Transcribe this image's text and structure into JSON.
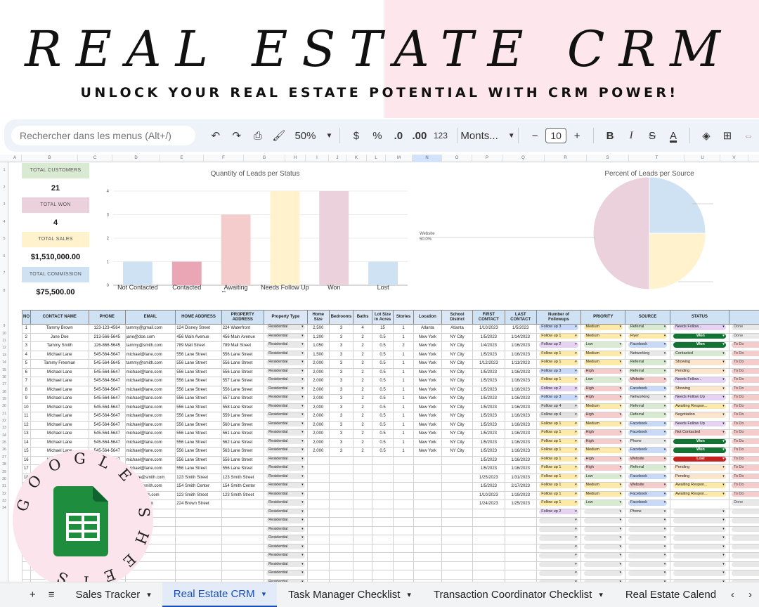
{
  "hero": {
    "title": "REAL ESTATE CRM",
    "subtitle": "UNLOCK YOUR REAL ESTATE POTENTIAL WITH CRM POWER!"
  },
  "toolbar": {
    "search_placeholder": "Rechercher dans les menus (Alt+/)",
    "zoom": "50%",
    "currency": "$",
    "percent": "%",
    "decrease_decimals": ".0",
    "increase_decimals": ".00",
    "number_format": "123",
    "font": "Monts...",
    "font_size": "10"
  },
  "columns": [
    "A",
    "B",
    "C",
    "D",
    "E",
    "F",
    "G",
    "H",
    "I",
    "J",
    "K",
    "L",
    "M",
    "N",
    "O",
    "P",
    "Q",
    "R",
    "S",
    "T",
    "U",
    "V"
  ],
  "kpis": [
    {
      "label": "TOTAL CUSTOMERS",
      "value": "21",
      "color": "#d9ead3"
    },
    {
      "label": "TOTAL WON",
      "value": "4",
      "color": "#ead1dc"
    },
    {
      "label": "TOTAL SALES",
      "value": "$1,510,000.00",
      "color": "#fff2cc"
    },
    {
      "label": "TOTAL COMMISSION",
      "value": "$75,500.00",
      "color": "#cfe2f3"
    }
  ],
  "charts": {
    "status": {
      "type": "bar",
      "title": "Quantity of Leads per Status",
      "categories": [
        "Not Contacted",
        "Contacted",
        "Awaiting Response",
        "Needs Follow Up",
        "Won",
        "Lost"
      ],
      "values": [
        1,
        1,
        3,
        4,
        4,
        1
      ],
      "colors": [
        "#cfe2f3",
        "#eaa6b4",
        "#f4cccc",
        "#fff2cc",
        "#ead1dc",
        "#cfe2f3"
      ],
      "ylim": [
        0,
        4
      ],
      "yticks": [
        "0",
        "1",
        "2",
        "3",
        "4"
      ]
    },
    "source": {
      "type": "pie",
      "title": "Percent of Leads per Source",
      "slices": [
        {
          "label": "Website",
          "pct": "50.0%",
          "value": 50,
          "color": "#ead1dc"
        },
        {
          "label": "",
          "value": 25,
          "color": "#cfe2f3"
        },
        {
          "label": "",
          "value": 25,
          "color": "#fff2cc"
        }
      ]
    }
  },
  "table": {
    "headers": [
      "NO",
      "CONTACT NAME",
      "PHONE",
      "EMAIL",
      "HOME ADDRESS",
      "PROPERTY ADDRESS",
      "Property Type",
      "Home Size",
      "Bedrooms",
      "Baths",
      "Lot Size in Acres",
      "Stories",
      "Location",
      "School District",
      "FIRST CONTACT",
      "LAST CONTACT",
      "Number of Followups",
      "PRIORITY",
      "SOURCE",
      "STATUS",
      ""
    ],
    "rows": [
      [
        "1",
        "Tammy Brown",
        "123-123-4564",
        "tammy@gmail.com",
        "124 Disney Street",
        "224 Waterfront",
        "Residential",
        "2,500",
        "3",
        "4",
        "15",
        "1",
        "Atlanta",
        "Atlanta",
        "1/10/2023",
        "1/5/2023",
        "Follow up 3",
        "Medium",
        "Referral",
        "Needs Follow...",
        "Done"
      ],
      [
        "2",
        "Jane Doe",
        "213-566-5645",
        "jane@doe.com",
        "456 Main Avenue",
        "456 Main Avenue",
        "Residential",
        "1,200",
        "3",
        "2",
        "0.5",
        "1",
        "New York",
        "NY City",
        "1/5/2023",
        "1/14/2023",
        "Follow up 1",
        "Medium",
        "Flyer",
        "Won",
        "Done"
      ],
      [
        "3",
        "Tammy Smith",
        "126-866-5645",
        "tammy@smith.com",
        "789 Mall Street",
        "789 Mall Street",
        "Residential",
        "1,050",
        "3",
        "2",
        "0.5",
        "2",
        "New York",
        "NY City",
        "1/4/2023",
        "1/16/2023",
        "Follow up 2",
        "Low",
        "Facebook",
        "Won",
        "To Do"
      ],
      [
        "4",
        "Michael Lane",
        "545-564-5647",
        "michael@lane.com",
        "556 Lane Street",
        "556 Lane Street",
        "Residential",
        "1,500",
        "3",
        "2",
        "0.5",
        "1",
        "New York",
        "NY City",
        "1/5/2023",
        "1/16/2023",
        "Follow up 1",
        "Medium",
        "Networking",
        "Contacted",
        "To Do"
      ],
      [
        "5",
        "Tammy Freeman",
        "545-564-5645",
        "tammy@smith.com",
        "556 Lane Street",
        "556 Lane Street",
        "Residential",
        "2,000",
        "3",
        "2",
        "0.5",
        "1",
        "New York",
        "NY City",
        "1/12/2023",
        "1/11/2023",
        "Follow up 1",
        "Medium",
        "Referral",
        "Showing",
        "To Do"
      ],
      [
        "6",
        "Michael Lane",
        "545-564-5647",
        "michael@lane.com",
        "556 Lane Street",
        "556 Lane Street",
        "Residential",
        "2,000",
        "3",
        "2",
        "0.5",
        "1",
        "New York",
        "NY City",
        "1/5/2023",
        "1/16/2023",
        "Follow up 3",
        "High",
        "Referral",
        "Pending",
        "To Do"
      ],
      [
        "7",
        "Michael Lane",
        "545-564-5647",
        "michael@lane.com",
        "556 Lane Street",
        "557 Lane Street",
        "Residential",
        "2,000",
        "3",
        "2",
        "0.5",
        "1",
        "New York",
        "NY City",
        "1/5/2023",
        "1/16/2023",
        "Follow up 1",
        "Low",
        "Website",
        "Needs Follow...",
        "To Do"
      ],
      [
        "8",
        "Michael Lane",
        "545-564-5647",
        "michael@lane.com",
        "556 Lane Street",
        "556 Lane Street",
        "Residential",
        "2,000",
        "3",
        "2",
        "0.5",
        "1",
        "New York",
        "NY City",
        "1/5/2023",
        "1/16/2023",
        "Follow up 2",
        "High",
        "Facebook",
        "Showing",
        "To Do"
      ],
      [
        "9",
        "Michael Lane",
        "545-564-5647",
        "michael@lane.com",
        "556 Lane Street",
        "557 Lane Street",
        "Residential",
        "2,000",
        "3",
        "2",
        "0.5",
        "1",
        "New York",
        "NY City",
        "1/5/2023",
        "1/16/2023",
        "Follow up 3",
        "High",
        "Networking",
        "Needs Follow Up",
        "To Do"
      ],
      [
        "10",
        "Michael Lane",
        "545-564-5647",
        "michael@lane.com",
        "556 Lane Street",
        "558 Lane Street",
        "Residential",
        "2,000",
        "3",
        "2",
        "0.5",
        "1",
        "New York",
        "NY City",
        "1/5/2023",
        "1/16/2023",
        "Follow up 4",
        "Medium",
        "Referral",
        "Awaiting Respon...",
        "To Do"
      ],
      [
        "11",
        "Michael Lane",
        "545-564-5647",
        "michael@lane.com",
        "556 Lane Street",
        "559 Lane Street",
        "Residential",
        "2,000",
        "3",
        "2",
        "0.5",
        "1",
        "New York",
        "NY City",
        "1/5/2023",
        "1/16/2023",
        "Follow up 4",
        "High",
        "Referral",
        "Negotiation",
        "To Do"
      ],
      [
        "12",
        "Michael Lane",
        "545-564-5647",
        "michael@lane.com",
        "556 Lane Street",
        "560 Lane Street",
        "Residential",
        "2,000",
        "3",
        "2",
        "0.5",
        "1",
        "New York",
        "NY City",
        "1/5/2023",
        "1/16/2023",
        "Follow up 1",
        "Medium",
        "Facebook",
        "Needs Follow Up",
        "To Do"
      ],
      [
        "13",
        "Michael Lane",
        "545-564-5647",
        "michael@lane.com",
        "556 Lane Street",
        "561 Lane Street",
        "Residential",
        "2,000",
        "3",
        "2",
        "0.5",
        "1",
        "New York",
        "NY City",
        "1/5/2023",
        "1/16/2023",
        "Follow up 1",
        "High",
        "Facebook",
        "Not Contacted",
        "To Do"
      ],
      [
        "14",
        "Michael Lane",
        "545-564-5647",
        "michael@lane.com",
        "556 Lane Street",
        "562 Lane Street",
        "Residential",
        "2,000",
        "3",
        "2",
        "0.5",
        "1",
        "New York",
        "NY City",
        "1/5/2023",
        "1/16/2023",
        "Follow up 1",
        "High",
        "Phone",
        "Won",
        "To Do"
      ],
      [
        "15",
        "Michael Lane",
        "545-564-5647",
        "michael@lane.com",
        "556 Lane Street",
        "563 Lane Street",
        "Residential",
        "2,000",
        "3",
        "2",
        "0.5",
        "1",
        "New York",
        "NY City",
        "1/5/2023",
        "1/16/2023",
        "Follow up 1",
        "Medium",
        "Facebook",
        "Won",
        "To Do"
      ],
      [
        "16",
        "Michael Lane",
        "545-564-5647",
        "michael@lane.com",
        "556 Lane Street",
        "556 Lane Street",
        "Residential",
        "",
        "",
        "",
        "",
        "",
        "",
        "",
        "1/5/2023",
        "1/16/2023",
        "Follow up 1",
        "High",
        "Website",
        "Lost",
        "To Do"
      ],
      [
        "17",
        "Michael Lane",
        "545-564-5647",
        "michael@lane.com",
        "556 Lane Street",
        "556 Lane Street",
        "Residential",
        "",
        "",
        "",
        "",
        "",
        "",
        "",
        "1/5/2023",
        "1/16/2023",
        "Follow up 1",
        "High",
        "Referral",
        "Pending",
        "To Do"
      ],
      [
        "18",
        "Steph",
        "-2528",
        "ephanie@smith.com",
        "123 Smith Street",
        "123 Smith Street",
        "Residential",
        "",
        "",
        "",
        "",
        "",
        "",
        "",
        "1/25/2023",
        "1/31/2023",
        "Follow up 1",
        "Low",
        "Facebook",
        "Pending",
        "To Do"
      ],
      [
        "19",
        "",
        "",
        "charlie@smith.com",
        "154 Smith Center",
        "154 Smith Center",
        "Residential",
        "",
        "",
        "",
        "",
        "",
        "",
        "",
        "1/5/2023",
        "2/17/2023",
        "Follow up 1",
        "Medium",
        "Website",
        "Awaiting Respon...",
        "To Do"
      ],
      [
        "20",
        "",
        "",
        "herry@smith.com",
        "123 Smith Street",
        "123 Smith Street",
        "Residential",
        "",
        "",
        "",
        "",
        "",
        "",
        "",
        "1/10/2023",
        "1/19/2023",
        "Follow up 1",
        "Medium",
        "Facebook",
        "Awaiting Respon...",
        "To Do"
      ],
      [
        "21",
        "",
        "",
        "e@brown.com",
        "224 Brown Street",
        "",
        "Residential",
        "",
        "",
        "",
        "",
        "",
        "",
        "",
        "1/24/2023",
        "1/25/2023",
        "Follow up 1",
        "Low",
        "Facebook",
        "",
        "Done"
      ],
      [
        "",
        "",
        "",
        "",
        "",
        "",
        "Residential",
        "",
        "",
        "",
        "",
        "",
        "",
        "",
        "",
        "",
        "Follow up 2",
        "",
        "Phone",
        "",
        ""
      ],
      [
        "",
        "",
        "",
        "",
        "",
        "",
        "Residential",
        "",
        "",
        "",
        "",
        "",
        "",
        "",
        "",
        "",
        "",
        "",
        "",
        "",
        ""
      ],
      [
        "",
        "",
        "",
        "",
        "",
        "",
        "Residential",
        "",
        "",
        "",
        "",
        "",
        "",
        "",
        "",
        "",
        "",
        "",
        "",
        "",
        ""
      ],
      [
        "",
        "",
        "",
        "",
        "",
        "",
        "Residential",
        "",
        "",
        "",
        "",
        "",
        "",
        "",
        "",
        "",
        "",
        "",
        "",
        "",
        ""
      ],
      [
        "",
        "",
        "",
        "",
        "",
        "",
        "Residential",
        "",
        "",
        "",
        "",
        "",
        "",
        "",
        "",
        "",
        "",
        "",
        "",
        "",
        ""
      ],
      [
        "",
        "",
        "",
        "",
        "",
        "",
        "Residential",
        "",
        "",
        "",
        "",
        "",
        "",
        "",
        "",
        "",
        "",
        "",
        "",
        "",
        ""
      ],
      [
        "",
        "",
        "",
        "",
        "",
        "",
        "Residential",
        "",
        "",
        "",
        "",
        "",
        "",
        "",
        "",
        "",
        "",
        "",
        "",
        "",
        ""
      ],
      [
        "",
        "",
        "",
        "",
        "",
        "",
        "Residential",
        "",
        "",
        "",
        "",
        "",
        "",
        "",
        "",
        "",
        "",
        "",
        "",
        "",
        ""
      ],
      [
        "",
        "",
        "",
        "",
        "",
        "",
        "Residential",
        "",
        "",
        "",
        "",
        "",
        "",
        "",
        "",
        "",
        "",
        "",
        "",
        "",
        ""
      ],
      [
        "",
        "",
        "",
        "",
        "",
        "",
        "",
        "",
        "",
        "",
        "",
        "",
        "",
        "",
        "",
        "",
        "",
        "",
        "",
        "",
        ""
      ],
      [
        "",
        "",
        "",
        "",
        "",
        "",
        "",
        "",
        "",
        "",
        "",
        "",
        "",
        "",
        "",
        "",
        "",
        "",
        "",
        "",
        ""
      ],
      [
        "",
        "",
        "",
        "",
        "",
        "",
        "",
        "",
        "",
        "",
        "",
        "",
        "",
        "",
        "",
        "",
        "",
        "",
        "",
        "",
        ""
      ],
      [
        "",
        "",
        "",
        "",
        "",
        "",
        "",
        "",
        "",
        "",
        "",
        "",
        "",
        "",
        "",
        "",
        "",
        "",
        "",
        "",
        ""
      ]
    ]
  },
  "chip_colors": {
    "Follow up 1": "#fde9a8",
    "Follow up 2": "#e6d3f3",
    "Follow up 3": "#c9daf8",
    "Follow up 4": "#e0e0e0",
    "Medium": "#fde9a8",
    "Low": "#d9ead3",
    "High": "#f4cccc",
    "Referral": "#d9ead3",
    "Flyer": "#fde9a8",
    "Facebook": "#c9daf8",
    "Networking": "#e8e8e8",
    "Website": "#f4cccc",
    "Phone": "#e8e8e8",
    "Needs Follow...": "#e6d3f3",
    "Needs Follow Up": "#e6d3f3",
    "Won": "#137333",
    "Contacted": "#d9ead3",
    "Showing": "#fce5cd",
    "Pending": "#fce5cd",
    "Awaiting Respon...": "#fde9a8",
    "Negotiation": "#fce5cd",
    "Not Contacted": "#f4cccc",
    "Lost": "#c5221f",
    "Done": "#e8e8e8",
    "To Do": "#f4cccc",
    "Residential": "#e8e8e8"
  },
  "logo": {
    "ring_text": "GOOGLE SHEETS"
  },
  "sheet_tabs": [
    {
      "label": "Sales Tracker",
      "active": false
    },
    {
      "label": "Real Estate CRM",
      "active": true
    },
    {
      "label": "Task Manager Checklist",
      "active": false
    },
    {
      "label": "Transaction Coordinator Checklist",
      "active": false
    },
    {
      "label": "Real Estate Calend",
      "active": false
    }
  ]
}
